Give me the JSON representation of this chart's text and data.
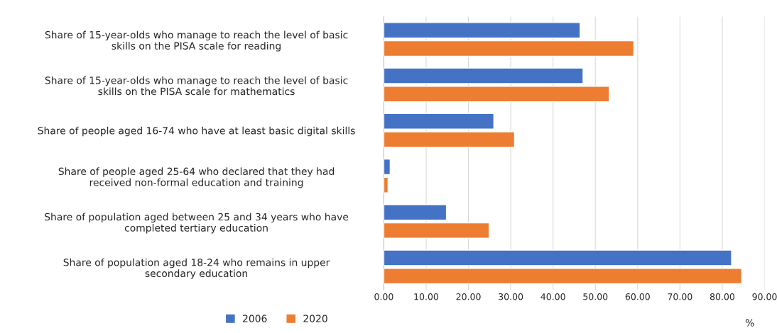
{
  "chart_data": {
    "type": "bar",
    "orientation": "horizontal",
    "xlabel": "%",
    "categories": [
      "Share of 15-year-olds who manage to reach the level of basic\nskills on the PISA scale for reading",
      "Share of 15-year-olds who manage to reach the level of basic\nskills on the PISA scale for mathematics",
      "Share of people aged 16-74 who have at least basic digital skills",
      "Share of people aged 25-64 who declared that they had\nreceived non-formal education and training",
      "Share of population aged between 25 and 34 years who have\ncompleted tertiary education",
      "Share of population aged 18-24 who remains in upper\nsecondary education"
    ],
    "series": [
      {
        "name": "2006",
        "color": "#4472c4",
        "values": [
          46.4,
          47.1,
          26.0,
          1.5,
          14.8,
          82.2
        ]
      },
      {
        "name": "2020",
        "color": "#ed7d31",
        "values": [
          59.1,
          53.3,
          30.9,
          1.0,
          24.9,
          84.6
        ]
      }
    ],
    "xlim": [
      0,
      90
    ],
    "xticks": [
      {
        "value": 0,
        "label": "0.00"
      },
      {
        "value": 10,
        "label": "10.00"
      },
      {
        "value": 20,
        "label": "20.00"
      },
      {
        "value": 30,
        "label": "30.00"
      },
      {
        "value": 40,
        "label": "40.00"
      },
      {
        "value": 50,
        "label": "50.00"
      },
      {
        "value": 60,
        "label": "60.00"
      },
      {
        "value": 70,
        "label": "70.00"
      },
      {
        "value": 80,
        "label": "80.00"
      },
      {
        "value": 90,
        "label": "90.00"
      }
    ],
    "grid": "x",
    "legend": "bottom"
  }
}
